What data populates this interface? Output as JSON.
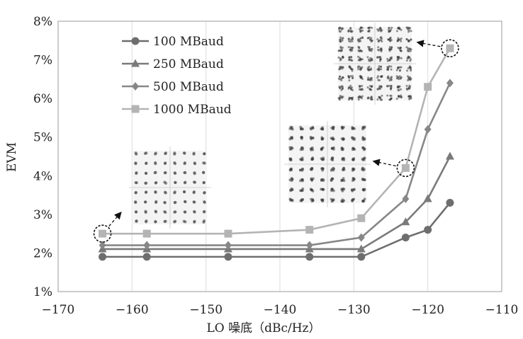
{
  "chart_data": {
    "type": "line",
    "title": "",
    "xlabel": "LO 噪底（dBc/Hz）",
    "ylabel": "EVM",
    "xlim": [
      -170,
      -110
    ],
    "ylim": [
      1,
      8
    ],
    "x_ticks": [
      "−170",
      "−160",
      "−150",
      "−140",
      "−130",
      "−120",
      "−110"
    ],
    "y_ticks": [
      "1%",
      "2%",
      "3%",
      "4%",
      "5%",
      "6%",
      "7%",
      "8%"
    ],
    "x": [
      -164,
      -158,
      -147,
      -136,
      -129,
      -123,
      -120,
      -117
    ],
    "grid": "vertical",
    "legend_position": "top-left",
    "series": [
      {
        "name": "100 MBaud",
        "marker": "circle",
        "color": "#6e6e6e",
        "values": [
          1.9,
          1.9,
          1.9,
          1.9,
          1.9,
          2.4,
          2.6,
          3.3
        ]
      },
      {
        "name": "250 MBaud",
        "marker": "triangle",
        "color": "#7a7a7a",
        "values": [
          2.1,
          2.1,
          2.1,
          2.1,
          2.1,
          2.8,
          3.4,
          4.5
        ]
      },
      {
        "name": "500 MBaud",
        "marker": "diamond",
        "color": "#878787",
        "values": [
          2.2,
          2.2,
          2.2,
          2.2,
          2.4,
          3.4,
          5.2,
          6.4
        ]
      },
      {
        "name": "1000 MBaud",
        "marker": "square",
        "color": "#b4b4b4",
        "values": [
          2.5,
          2.5,
          2.5,
          2.6,
          2.9,
          4.2,
          6.3,
          7.3
        ]
      }
    ],
    "annotations": [
      {
        "type": "constellation",
        "grid": 8,
        "at_x": -164,
        "series": "1000 MBaud",
        "noise": "low"
      },
      {
        "type": "constellation",
        "grid": 8,
        "at_x": -123,
        "series": "1000 MBaud",
        "noise": "medium"
      },
      {
        "type": "constellation",
        "grid": 8,
        "at_x": -117,
        "series": "1000 MBaud",
        "noise": "high"
      }
    ]
  }
}
